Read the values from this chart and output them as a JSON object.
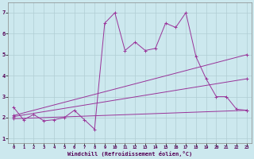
{
  "xlabel": "Windchill (Refroidissement éolien,°C)",
  "background_color": "#cce8ee",
  "grid_color": "#b0cdd4",
  "line_color": "#993399",
  "xlim": [
    -0.5,
    23.5
  ],
  "ylim": [
    0.8,
    7.5
  ],
  "xticks": [
    0,
    1,
    2,
    3,
    4,
    5,
    6,
    7,
    8,
    9,
    10,
    11,
    12,
    13,
    14,
    15,
    16,
    17,
    18,
    19,
    20,
    21,
    22,
    23
  ],
  "yticks": [
    1,
    2,
    3,
    4,
    5,
    6,
    7
  ],
  "series1_x": [
    0,
    1,
    2,
    3,
    4,
    5,
    6,
    7,
    8,
    9,
    10,
    11,
    12,
    13,
    14,
    15,
    16,
    17,
    18,
    19,
    20,
    21,
    22,
    23
  ],
  "series1_y": [
    2.5,
    1.9,
    2.15,
    1.85,
    1.9,
    2.0,
    2.35,
    1.9,
    1.45,
    6.5,
    7.0,
    5.2,
    5.6,
    5.2,
    5.3,
    6.5,
    6.3,
    7.0,
    4.9,
    3.85,
    3.0,
    3.0,
    2.4,
    2.35
  ],
  "series2_x": [
    0,
    23
  ],
  "series2_y": [
    2.1,
    5.0
  ],
  "series3_x": [
    0,
    23
  ],
  "series3_y": [
    1.95,
    2.35
  ],
  "series4_x": [
    0,
    23
  ],
  "series4_y": [
    2.05,
    3.85
  ]
}
